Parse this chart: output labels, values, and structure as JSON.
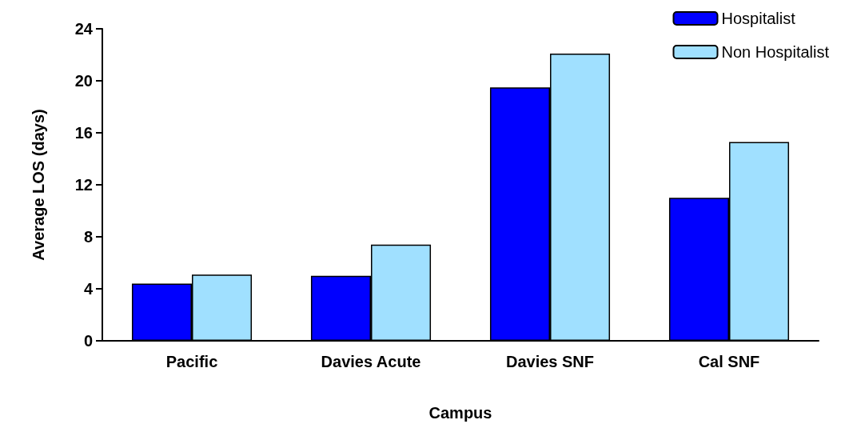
{
  "chart_data": {
    "type": "bar",
    "xlabel": "Campus",
    "ylabel": "Average LOS (days)",
    "categories": [
      "Pacific",
      "Davies Acute",
      "Davies SNF",
      "Cal SNF"
    ],
    "series": [
      {
        "name": "Hospitalist",
        "color": "#0000ff",
        "values": [
          4.4,
          5.0,
          19.5,
          11.0
        ]
      },
      {
        "name": "Non Hospitalist",
        "color": "#a0e0ff",
        "values": [
          5.1,
          7.4,
          22.1,
          15.3
        ]
      }
    ],
    "ylim": [
      0,
      24
    ],
    "yticks": [
      0,
      4,
      8,
      12,
      16,
      20,
      24
    ],
    "grid": false,
    "legend": "top right"
  }
}
